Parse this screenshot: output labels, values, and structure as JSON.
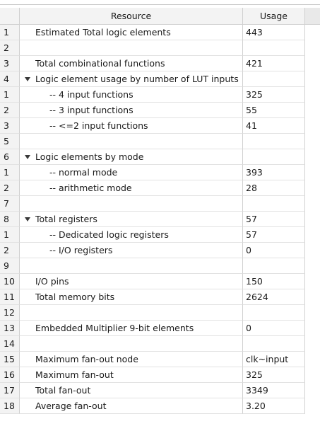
{
  "header": {
    "index": "",
    "resource": "Resource",
    "usage": "Usage"
  },
  "rows": [
    {
      "idx": "1",
      "resource": "Estimated Total logic elements",
      "usage": "443"
    },
    {
      "idx": "2",
      "resource": "",
      "usage": ""
    },
    {
      "idx": "3",
      "resource": "Total combinational functions",
      "usage": "421"
    },
    {
      "idx": "4",
      "resource": "Logic element usage by number of LUT inputs",
      "usage": ""
    },
    {
      "idx": "1",
      "resource": "-- 4 input functions",
      "usage": "325"
    },
    {
      "idx": "2",
      "resource": "-- 3 input functions",
      "usage": "55"
    },
    {
      "idx": "3",
      "resource": "-- <=2 input functions",
      "usage": "41"
    },
    {
      "idx": "5",
      "resource": "",
      "usage": ""
    },
    {
      "idx": "6",
      "resource": "Logic elements by mode",
      "usage": ""
    },
    {
      "idx": "1",
      "resource": "-- normal mode",
      "usage": "393"
    },
    {
      "idx": "2",
      "resource": "-- arithmetic mode",
      "usage": "28"
    },
    {
      "idx": "7",
      "resource": "",
      "usage": ""
    },
    {
      "idx": "8",
      "resource": "Total registers",
      "usage": "57"
    },
    {
      "idx": "1",
      "resource": "-- Dedicated logic registers",
      "usage": "57"
    },
    {
      "idx": "2",
      "resource": "-- I/O registers",
      "usage": "0"
    },
    {
      "idx": "9",
      "resource": "",
      "usage": ""
    },
    {
      "idx": "10",
      "resource": "I/O pins",
      "usage": "150"
    },
    {
      "idx": "11",
      "resource": "Total memory bits",
      "usage": "2624"
    },
    {
      "idx": "12",
      "resource": "",
      "usage": ""
    },
    {
      "idx": "13",
      "resource": "Embedded Multiplier 9-bit elements",
      "usage": "0"
    },
    {
      "idx": "14",
      "resource": "",
      "usage": ""
    },
    {
      "idx": "15",
      "resource": "Maximum fan-out node",
      "usage": "clk~input"
    },
    {
      "idx": "16",
      "resource": "Maximum fan-out",
      "usage": "325"
    },
    {
      "idx": "17",
      "resource": "Total fan-out",
      "usage": "3349"
    },
    {
      "idx": "18",
      "resource": "Average fan-out",
      "usage": "3.20"
    }
  ]
}
